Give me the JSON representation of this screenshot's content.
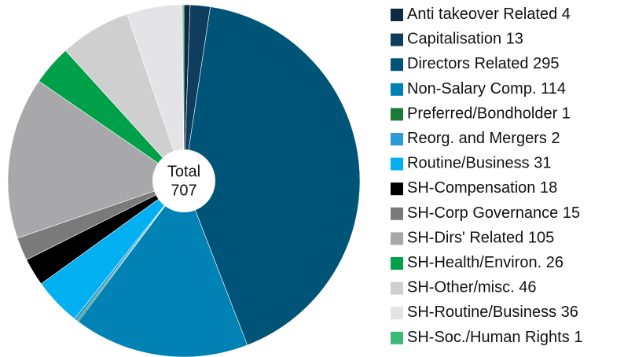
{
  "chart_data": {
    "type": "pie",
    "center_label": "Total",
    "total": 707,
    "categories": [
      "Anti takeover Related",
      "Capitalisation",
      "Directors Related",
      "Non-Salary Comp.",
      "Preferred/Bondholder",
      "Reorg. and Mergers",
      "Routine/Business",
      "SH-Compensation",
      "SH-Corp Governance",
      "SH-Dirs' Related",
      "SH-Health/Environ.",
      "SH-Other/misc.",
      "SH-Routine/Business",
      "SH-Soc./Human Rights"
    ],
    "values": [
      4,
      13,
      295,
      114,
      1,
      2,
      31,
      18,
      15,
      105,
      26,
      46,
      36,
      1
    ],
    "colors": [
      "#0d2a45",
      "#0f3d5e",
      "#005478",
      "#0082b4",
      "#1a7a3a",
      "#2a9ad8",
      "#00b0f0",
      "#000000",
      "#7a7a7a",
      "#a8a8aa",
      "#00a04a",
      "#cfcfd0",
      "#e4e4e6",
      "#3cb878"
    ]
  }
}
